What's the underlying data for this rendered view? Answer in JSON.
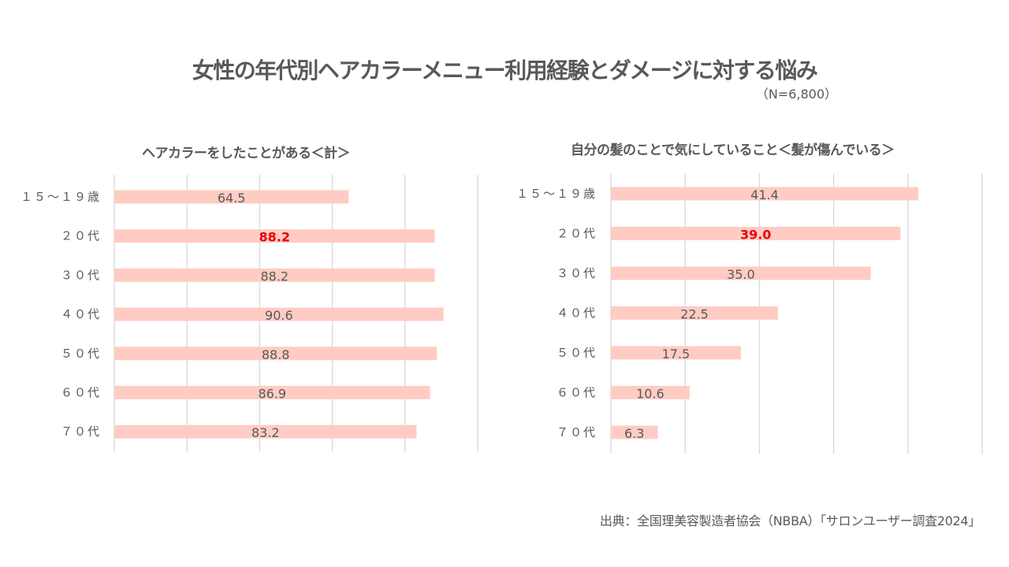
{
  "title": "女性の年代別ヘアカラーメニュー利用経験とダメージに対する悩み",
  "sample_size": "（N=6,800）",
  "source": "出典：全国理美容製造者協会（NBBA）「サロンユーザー調査2024」",
  "colors": {
    "bar": "#FFCCC4",
    "highlight_label": "#E8000B",
    "text": "#595959",
    "grid": "#D9D9D9"
  },
  "chart_data": [
    {
      "type": "bar",
      "orientation": "horizontal",
      "title": "ヘアカラーをしたことがある＜計＞",
      "categories": [
        "１５～１９歳",
        "２０代",
        "３０代",
        "４０代",
        "５０代",
        "６０代",
        "７０代"
      ],
      "values": [
        64.5,
        88.2,
        88.2,
        90.6,
        88.8,
        86.9,
        83.2
      ],
      "value_labels": [
        "64.5",
        "88.2",
        "88.2",
        "90.6",
        "88.8",
        "86.9",
        "83.2"
      ],
      "highlight_index": 1,
      "xlim": [
        0,
        100
      ],
      "grid_step": 20,
      "grid": true,
      "xlabel": "",
      "ylabel": ""
    },
    {
      "type": "bar",
      "orientation": "horizontal",
      "title": "自分の髪のことで気にしていること＜髪が傷んでいる＞",
      "categories": [
        "１５～１９歳",
        "２０代",
        "３０代",
        "４０代",
        "５０代",
        "６０代",
        "７０代"
      ],
      "values": [
        41.4,
        39.0,
        35.0,
        22.5,
        17.5,
        10.6,
        6.3
      ],
      "value_labels": [
        "41.4",
        "39.0",
        "35.0",
        "22.5",
        "17.5",
        "10.6",
        "6.3"
      ],
      "highlight_index": 1,
      "xlim": [
        0,
        50
      ],
      "grid_step": 10,
      "grid": true,
      "xlabel": "",
      "ylabel": ""
    }
  ]
}
